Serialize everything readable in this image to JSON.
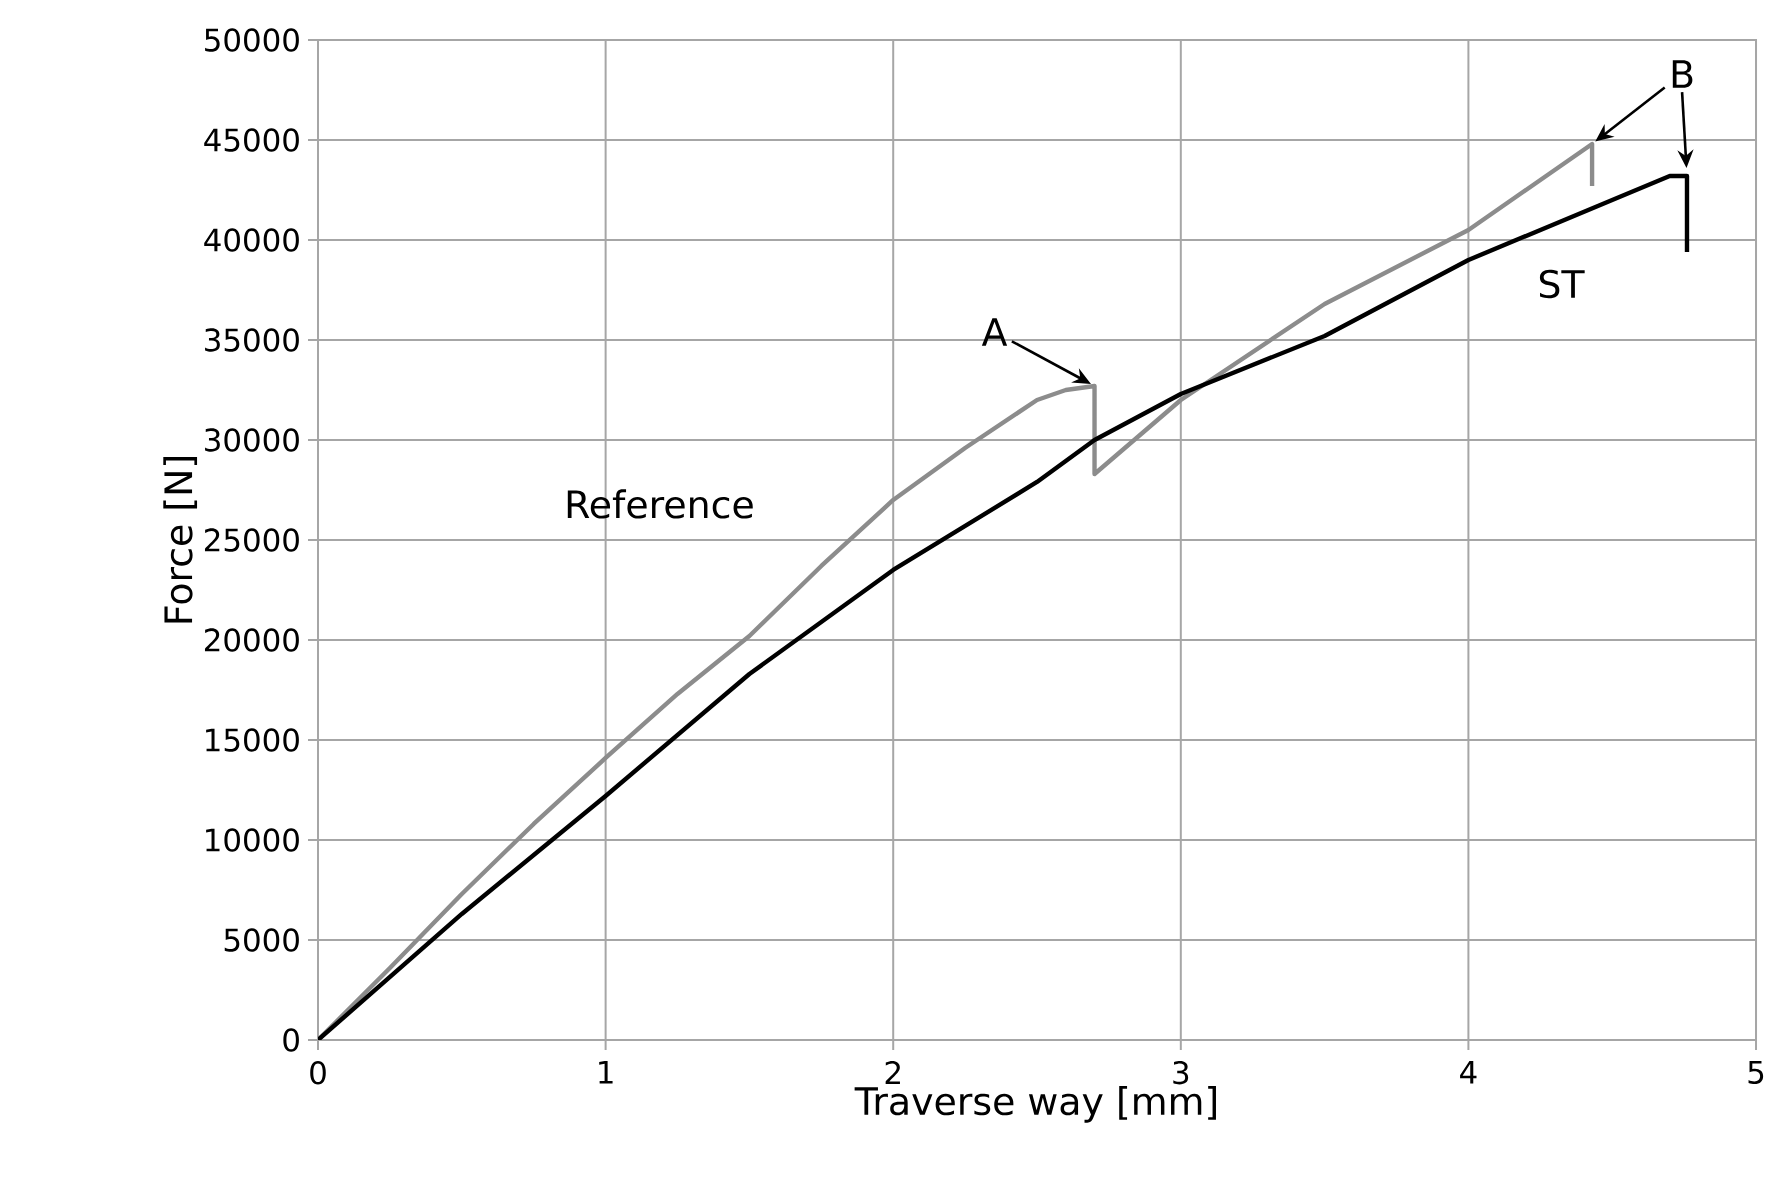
{
  "chart_data": {
    "type": "line",
    "xlabel": "Traverse way [mm]",
    "ylabel": "Force [N]",
    "xlim": [
      0,
      5
    ],
    "ylim": [
      0,
      50000
    ],
    "xticks": [
      0,
      1,
      2,
      3,
      4,
      5
    ],
    "yticks": [
      0,
      5000,
      10000,
      15000,
      20000,
      25000,
      30000,
      35000,
      40000,
      45000,
      50000
    ],
    "grid": true,
    "marker": "none",
    "line_style": "solid",
    "series": [
      {
        "name": "Reference",
        "color": "#8c8c8c",
        "x": [
          0,
          0.25,
          0.5,
          0.75,
          1,
          1.25,
          1.5,
          1.75,
          2,
          2.25,
          2.5,
          2.6,
          2.7,
          2.7,
          3,
          3.5,
          4,
          4.43,
          4.43
        ],
        "values": [
          0,
          3600,
          7300,
          10800,
          14100,
          17300,
          20200,
          23700,
          27000,
          29600,
          32000,
          32500,
          32700,
          28300,
          32000,
          36800,
          40500,
          44800,
          42700
        ]
      },
      {
        "name": "ST",
        "color": "#000000",
        "x": [
          0,
          0.5,
          1,
          1.5,
          2,
          2.5,
          2.7,
          3,
          3.5,
          4,
          4.5,
          4.7,
          4.76,
          4.76
        ],
        "values": [
          0,
          6300,
          12200,
          18300,
          23500,
          27900,
          30000,
          32300,
          35200,
          39000,
          42000,
          43200,
          43200,
          39400
        ]
      }
    ],
    "annotations": [
      {
        "text": "A",
        "x": 2.7,
        "y": 32700
      },
      {
        "text": "B",
        "x": 4.43,
        "y": 44800
      }
    ]
  }
}
